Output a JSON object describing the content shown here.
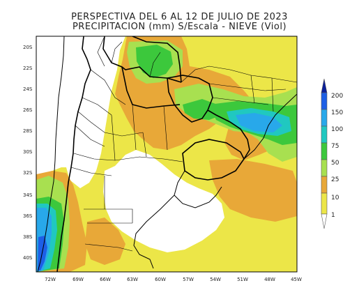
{
  "title": {
    "line1": "PERSPECTIVA DEL 6 AL 12 DE JULIO DE 2023",
    "line2": "PRECIPITACION (mm) S/Escala - NIEVE (Viol)"
  },
  "lat_labels": [
    "20S",
    "22S",
    "24S",
    "26S",
    "28S",
    "30S",
    "32S",
    "34S",
    "36S",
    "38S",
    "40S"
  ],
  "lon_labels": [
    "72W",
    "69W",
    "66W",
    "63W",
    "60W",
    "57W",
    "54W",
    "51W",
    "48W",
    "45W"
  ],
  "legend": {
    "labels": [
      "200",
      "150",
      "100",
      "75",
      "50",
      "25",
      "10",
      "1"
    ],
    "colors": [
      "#0a1f9a",
      "#1d5fe6",
      "#28a8ea",
      "#20c8c0",
      "#3cc83c",
      "#a8e050",
      "#e8a838",
      "#ece648",
      "#ffffff"
    ]
  },
  "colors": {
    "yellow": "#ece648",
    "orange": "#e8a838",
    "lightgreen": "#a8e050",
    "green": "#3cc83c",
    "cyan": "#20c8c0",
    "lightblue": "#28a8ea",
    "blue": "#1d5fe6",
    "darkblue": "#0a1f9a",
    "white": "#ffffff"
  }
}
